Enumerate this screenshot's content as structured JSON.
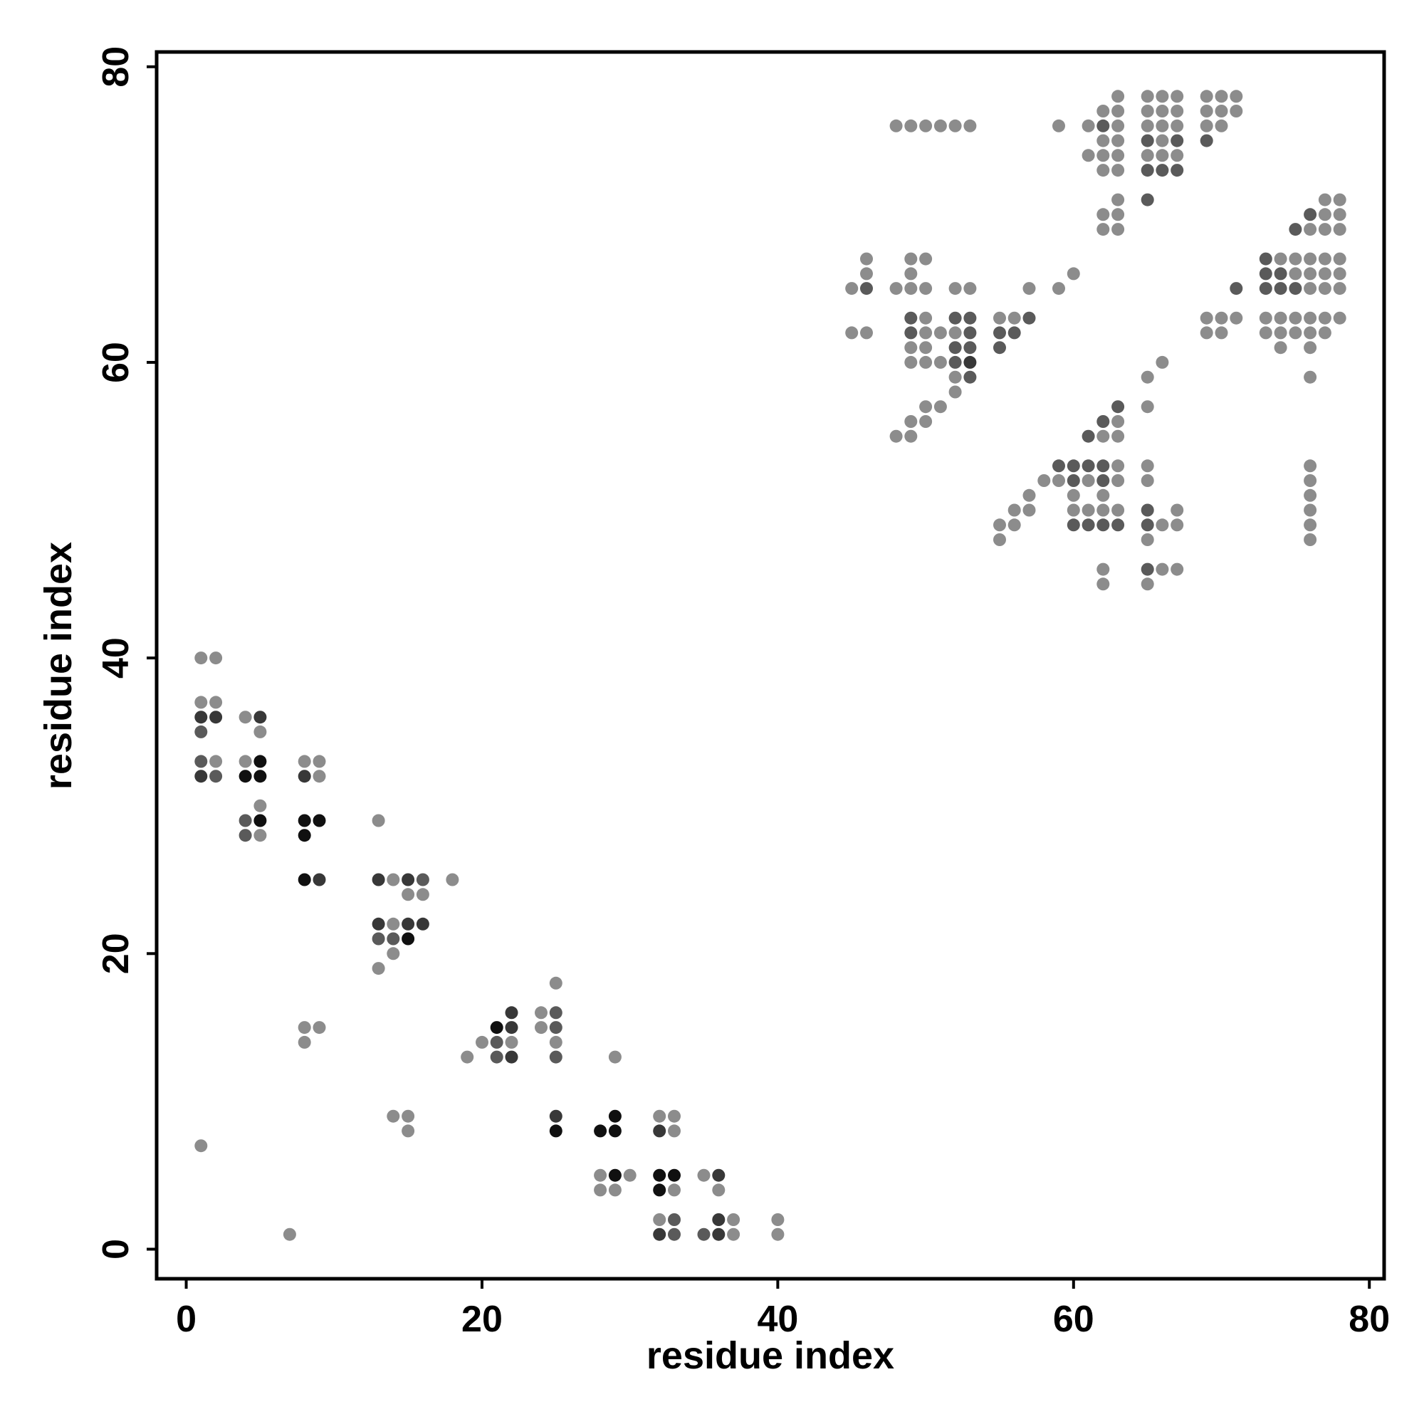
{
  "chart_data": {
    "type": "scatter",
    "xlabel": "residue index",
    "ylabel": "residue index",
    "xlim": [
      -2,
      81
    ],
    "ylim": [
      -2,
      81
    ],
    "xticks": [
      0,
      20,
      40,
      60,
      80
    ],
    "yticks": [
      0,
      20,
      40,
      60,
      80
    ],
    "grid": false,
    "legend": "none",
    "shade_colors": {
      "light": "#8c8c8c",
      "medium": "#5a5a5a",
      "dark": "#383838",
      "black": "#101010"
    },
    "points": [
      [
        1,
        40,
        "light"
      ],
      [
        2,
        40,
        "light"
      ],
      [
        1,
        37,
        "light"
      ],
      [
        2,
        37,
        "light"
      ],
      [
        1,
        36,
        "dark"
      ],
      [
        2,
        36,
        "dark"
      ],
      [
        1,
        35,
        "medium"
      ],
      [
        1,
        33,
        "medium"
      ],
      [
        2,
        33,
        "light"
      ],
      [
        1,
        32,
        "dark"
      ],
      [
        2,
        32,
        "medium"
      ],
      [
        4,
        36,
        "light"
      ],
      [
        5,
        36,
        "dark"
      ],
      [
        5,
        35,
        "light"
      ],
      [
        4,
        33,
        "light"
      ],
      [
        5,
        33,
        "black"
      ],
      [
        4,
        32,
        "black"
      ],
      [
        5,
        32,
        "black"
      ],
      [
        5,
        30,
        "light"
      ],
      [
        4,
        29,
        "medium"
      ],
      [
        5,
        29,
        "black"
      ],
      [
        4,
        28,
        "medium"
      ],
      [
        5,
        28,
        "light"
      ],
      [
        8,
        33,
        "light"
      ],
      [
        9,
        33,
        "light"
      ],
      [
        8,
        32,
        "dark"
      ],
      [
        9,
        32,
        "light"
      ],
      [
        8,
        29,
        "black"
      ],
      [
        9,
        29,
        "black"
      ],
      [
        8,
        28,
        "black"
      ],
      [
        8,
        25,
        "black"
      ],
      [
        9,
        25,
        "dark"
      ],
      [
        13,
        29,
        "light"
      ],
      [
        13,
        25,
        "dark"
      ],
      [
        14,
        25,
        "light"
      ],
      [
        15,
        25,
        "dark"
      ],
      [
        16,
        25,
        "medium"
      ],
      [
        18,
        25,
        "light"
      ],
      [
        15,
        24,
        "light"
      ],
      [
        16,
        24,
        "light"
      ],
      [
        13,
        22,
        "dark"
      ],
      [
        14,
        22,
        "light"
      ],
      [
        15,
        22,
        "dark"
      ],
      [
        16,
        22,
        "dark"
      ],
      [
        13,
        21,
        "medium"
      ],
      [
        14,
        21,
        "medium"
      ],
      [
        15,
        21,
        "black"
      ],
      [
        14,
        20,
        "light"
      ],
      [
        13,
        19,
        "light"
      ],
      [
        8,
        15,
        "light"
      ],
      [
        9,
        15,
        "light"
      ],
      [
        8,
        14,
        "light"
      ],
      [
        14,
        9,
        "light"
      ],
      [
        15,
        9,
        "light"
      ],
      [
        15,
        8,
        "light"
      ],
      [
        1,
        7,
        "light"
      ],
      [
        7,
        1,
        "light"
      ],
      [
        25,
        18,
        "light"
      ],
      [
        22,
        16,
        "dark"
      ],
      [
        24,
        16,
        "light"
      ],
      [
        25,
        16,
        "medium"
      ],
      [
        21,
        15,
        "black"
      ],
      [
        22,
        15,
        "dark"
      ],
      [
        24,
        15,
        "light"
      ],
      [
        25,
        15,
        "medium"
      ],
      [
        20,
        14,
        "light"
      ],
      [
        21,
        14,
        "medium"
      ],
      [
        22,
        14,
        "light"
      ],
      [
        25,
        14,
        "light"
      ],
      [
        19,
        13,
        "light"
      ],
      [
        21,
        13,
        "medium"
      ],
      [
        22,
        13,
        "dark"
      ],
      [
        25,
        13,
        "medium"
      ],
      [
        29,
        13,
        "light"
      ],
      [
        25,
        9,
        "dark"
      ],
      [
        25,
        8,
        "black"
      ],
      [
        28,
        8,
        "black"
      ],
      [
        29,
        8,
        "black"
      ],
      [
        29,
        9,
        "black"
      ],
      [
        32,
        9,
        "light"
      ],
      [
        33,
        9,
        "light"
      ],
      [
        32,
        8,
        "dark"
      ],
      [
        33,
        8,
        "light"
      ],
      [
        28,
        5,
        "light"
      ],
      [
        29,
        5,
        "black"
      ],
      [
        30,
        5,
        "light"
      ],
      [
        28,
        4,
        "light"
      ],
      [
        29,
        4,
        "light"
      ],
      [
        32,
        5,
        "black"
      ],
      [
        33,
        5,
        "black"
      ],
      [
        32,
        4,
        "black"
      ],
      [
        33,
        4,
        "light"
      ],
      [
        35,
        5,
        "light"
      ],
      [
        36,
        5,
        "dark"
      ],
      [
        36,
        4,
        "light"
      ],
      [
        32,
        2,
        "light"
      ],
      [
        33,
        2,
        "medium"
      ],
      [
        32,
        1,
        "dark"
      ],
      [
        33,
        1,
        "medium"
      ],
      [
        35,
        1,
        "medium"
      ],
      [
        36,
        2,
        "dark"
      ],
      [
        37,
        2,
        "light"
      ],
      [
        36,
        1,
        "dark"
      ],
      [
        37,
        1,
        "light"
      ],
      [
        40,
        2,
        "light"
      ],
      [
        40,
        1,
        "light"
      ],
      [
        48,
        76,
        "light"
      ],
      [
        49,
        76,
        "light"
      ],
      [
        50,
        76,
        "light"
      ],
      [
        51,
        76,
        "light"
      ],
      [
        52,
        76,
        "light"
      ],
      [
        53,
        76,
        "light"
      ],
      [
        59,
        76,
        "light"
      ],
      [
        63,
        78,
        "light"
      ],
      [
        62,
        77,
        "light"
      ],
      [
        63,
        77,
        "light"
      ],
      [
        61,
        76,
        "light"
      ],
      [
        62,
        76,
        "medium"
      ],
      [
        63,
        76,
        "light"
      ],
      [
        62,
        75,
        "light"
      ],
      [
        63,
        75,
        "light"
      ],
      [
        61,
        74,
        "light"
      ],
      [
        62,
        74,
        "light"
      ],
      [
        63,
        74,
        "light"
      ],
      [
        62,
        73,
        "light"
      ],
      [
        63,
        73,
        "light"
      ],
      [
        65,
        78,
        "light"
      ],
      [
        66,
        78,
        "light"
      ],
      [
        67,
        78,
        "light"
      ],
      [
        65,
        77,
        "light"
      ],
      [
        66,
        77,
        "light"
      ],
      [
        67,
        77,
        "light"
      ],
      [
        65,
        76,
        "light"
      ],
      [
        66,
        76,
        "light"
      ],
      [
        67,
        76,
        "light"
      ],
      [
        65,
        75,
        "medium"
      ],
      [
        66,
        75,
        "light"
      ],
      [
        67,
        75,
        "medium"
      ],
      [
        65,
        74,
        "light"
      ],
      [
        66,
        74,
        "light"
      ],
      [
        67,
        74,
        "light"
      ],
      [
        65,
        73,
        "medium"
      ],
      [
        66,
        73,
        "medium"
      ],
      [
        67,
        73,
        "medium"
      ],
      [
        69,
        78,
        "light"
      ],
      [
        70,
        78,
        "light"
      ],
      [
        71,
        78,
        "light"
      ],
      [
        69,
        77,
        "light"
      ],
      [
        70,
        77,
        "light"
      ],
      [
        71,
        77,
        "light"
      ],
      [
        69,
        76,
        "light"
      ],
      [
        70,
        76,
        "light"
      ],
      [
        69,
        75,
        "medium"
      ],
      [
        63,
        71,
        "light"
      ],
      [
        65,
        71,
        "medium"
      ],
      [
        62,
        70,
        "light"
      ],
      [
        63,
        70,
        "light"
      ],
      [
        62,
        69,
        "light"
      ],
      [
        63,
        69,
        "light"
      ],
      [
        77,
        71,
        "light"
      ],
      [
        78,
        71,
        "light"
      ],
      [
        76,
        70,
        "medium"
      ],
      [
        77,
        70,
        "light"
      ],
      [
        78,
        70,
        "light"
      ],
      [
        75,
        69,
        "medium"
      ],
      [
        76,
        69,
        "light"
      ],
      [
        77,
        69,
        "light"
      ],
      [
        78,
        69,
        "light"
      ],
      [
        73,
        67,
        "medium"
      ],
      [
        74,
        67,
        "light"
      ],
      [
        75,
        67,
        "light"
      ],
      [
        76,
        67,
        "light"
      ],
      [
        77,
        67,
        "light"
      ],
      [
        78,
        67,
        "light"
      ],
      [
        73,
        66,
        "medium"
      ],
      [
        74,
        66,
        "medium"
      ],
      [
        75,
        66,
        "light"
      ],
      [
        76,
        66,
        "light"
      ],
      [
        77,
        66,
        "light"
      ],
      [
        78,
        66,
        "light"
      ],
      [
        71,
        65,
        "medium"
      ],
      [
        73,
        65,
        "medium"
      ],
      [
        74,
        65,
        "medium"
      ],
      [
        75,
        65,
        "medium"
      ],
      [
        76,
        65,
        "light"
      ],
      [
        77,
        65,
        "light"
      ],
      [
        78,
        65,
        "light"
      ],
      [
        69,
        63,
        "light"
      ],
      [
        70,
        63,
        "light"
      ],
      [
        71,
        63,
        "light"
      ],
      [
        73,
        63,
        "light"
      ],
      [
        74,
        63,
        "light"
      ],
      [
        75,
        63,
        "light"
      ],
      [
        76,
        63,
        "light"
      ],
      [
        77,
        63,
        "light"
      ],
      [
        78,
        63,
        "light"
      ],
      [
        69,
        62,
        "light"
      ],
      [
        70,
        62,
        "light"
      ],
      [
        73,
        62,
        "light"
      ],
      [
        74,
        62,
        "light"
      ],
      [
        75,
        62,
        "light"
      ],
      [
        76,
        62,
        "light"
      ],
      [
        77,
        62,
        "light"
      ],
      [
        74,
        61,
        "light"
      ],
      [
        76,
        61,
        "light"
      ],
      [
        76,
        59,
        "light"
      ],
      [
        46,
        67,
        "light"
      ],
      [
        46,
        66,
        "light"
      ],
      [
        45,
        65,
        "light"
      ],
      [
        46,
        65,
        "medium"
      ],
      [
        45,
        62,
        "light"
      ],
      [
        46,
        62,
        "light"
      ],
      [
        49,
        67,
        "light"
      ],
      [
        50,
        67,
        "light"
      ],
      [
        49,
        66,
        "light"
      ],
      [
        48,
        65,
        "light"
      ],
      [
        49,
        65,
        "light"
      ],
      [
        50,
        65,
        "light"
      ],
      [
        52,
        65,
        "light"
      ],
      [
        53,
        65,
        "light"
      ],
      [
        57,
        65,
        "light"
      ],
      [
        59,
        65,
        "light"
      ],
      [
        60,
        66,
        "light"
      ],
      [
        49,
        63,
        "medium"
      ],
      [
        50,
        63,
        "light"
      ],
      [
        52,
        63,
        "medium"
      ],
      [
        53,
        63,
        "medium"
      ],
      [
        49,
        62,
        "medium"
      ],
      [
        50,
        62,
        "light"
      ],
      [
        51,
        62,
        "light"
      ],
      [
        52,
        62,
        "light"
      ],
      [
        53,
        62,
        "medium"
      ],
      [
        49,
        61,
        "light"
      ],
      [
        50,
        61,
        "light"
      ],
      [
        52,
        61,
        "medium"
      ],
      [
        53,
        61,
        "medium"
      ],
      [
        49,
        60,
        "light"
      ],
      [
        50,
        60,
        "light"
      ],
      [
        51,
        60,
        "light"
      ],
      [
        52,
        60,
        "medium"
      ],
      [
        53,
        60,
        "dark"
      ],
      [
        52,
        59,
        "light"
      ],
      [
        53,
        59,
        "medium"
      ],
      [
        52,
        58,
        "light"
      ],
      [
        55,
        63,
        "light"
      ],
      [
        56,
        63,
        "light"
      ],
      [
        57,
        63,
        "medium"
      ],
      [
        55,
        62,
        "medium"
      ],
      [
        56,
        62,
        "medium"
      ],
      [
        55,
        61,
        "medium"
      ],
      [
        50,
        57,
        "light"
      ],
      [
        51,
        57,
        "light"
      ],
      [
        49,
        56,
        "light"
      ],
      [
        50,
        56,
        "light"
      ],
      [
        48,
        55,
        "light"
      ],
      [
        49,
        55,
        "light"
      ],
      [
        66,
        60,
        "light"
      ],
      [
        65,
        59,
        "light"
      ],
      [
        65,
        57,
        "light"
      ],
      [
        63,
        57,
        "medium"
      ],
      [
        62,
        56,
        "medium"
      ],
      [
        63,
        56,
        "light"
      ],
      [
        61,
        55,
        "medium"
      ],
      [
        62,
        55,
        "light"
      ],
      [
        63,
        55,
        "light"
      ],
      [
        59,
        53,
        "medium"
      ],
      [
        60,
        53,
        "medium"
      ],
      [
        61,
        53,
        "medium"
      ],
      [
        62,
        53,
        "medium"
      ],
      [
        63,
        53,
        "light"
      ],
      [
        65,
        53,
        "light"
      ],
      [
        58,
        52,
        "light"
      ],
      [
        59,
        52,
        "light"
      ],
      [
        60,
        52,
        "medium"
      ],
      [
        61,
        52,
        "light"
      ],
      [
        62,
        52,
        "medium"
      ],
      [
        63,
        52,
        "light"
      ],
      [
        65,
        52,
        "light"
      ],
      [
        57,
        51,
        "light"
      ],
      [
        60,
        51,
        "light"
      ],
      [
        62,
        51,
        "light"
      ],
      [
        56,
        50,
        "light"
      ],
      [
        57,
        50,
        "light"
      ],
      [
        60,
        50,
        "light"
      ],
      [
        61,
        50,
        "light"
      ],
      [
        62,
        50,
        "light"
      ],
      [
        63,
        50,
        "light"
      ],
      [
        65,
        50,
        "medium"
      ],
      [
        67,
        50,
        "light"
      ],
      [
        55,
        49,
        "light"
      ],
      [
        56,
        49,
        "light"
      ],
      [
        60,
        49,
        "medium"
      ],
      [
        61,
        49,
        "medium"
      ],
      [
        62,
        49,
        "medium"
      ],
      [
        63,
        49,
        "medium"
      ],
      [
        65,
        49,
        "medium"
      ],
      [
        66,
        49,
        "light"
      ],
      [
        67,
        49,
        "light"
      ],
      [
        55,
        48,
        "light"
      ],
      [
        65,
        48,
        "light"
      ],
      [
        62,
        46,
        "light"
      ],
      [
        65,
        46,
        "medium"
      ],
      [
        66,
        46,
        "light"
      ],
      [
        67,
        46,
        "light"
      ],
      [
        62,
        45,
        "light"
      ],
      [
        65,
        45,
        "light"
      ],
      [
        76,
        53,
        "light"
      ],
      [
        76,
        52,
        "light"
      ],
      [
        76,
        51,
        "light"
      ],
      [
        76,
        50,
        "light"
      ],
      [
        76,
        49,
        "light"
      ],
      [
        76,
        48,
        "light"
      ]
    ]
  }
}
